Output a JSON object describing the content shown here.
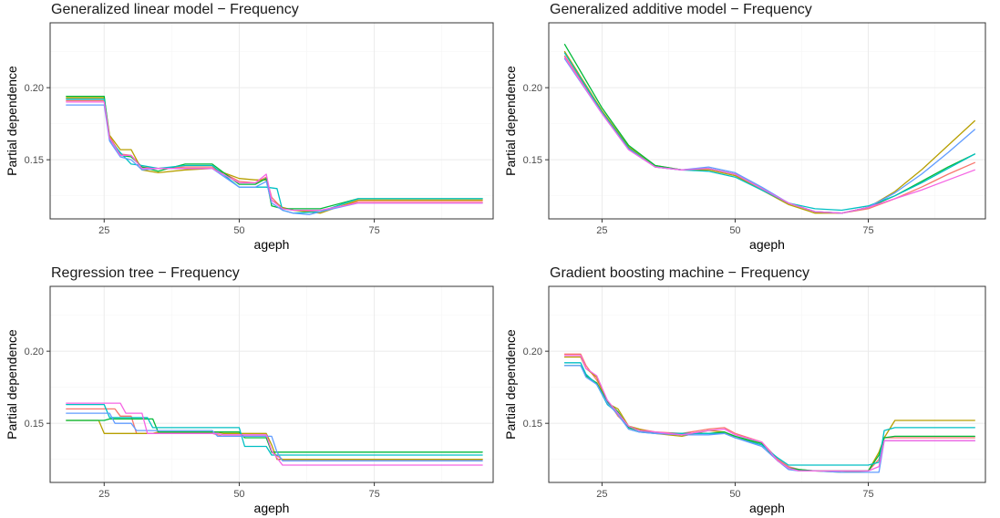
{
  "chart_data": [
    {
      "type": "line",
      "title": "Generalized linear model − Frequency",
      "xlabel": "ageph",
      "ylabel": "Partial dependence",
      "xlim": [
        15,
        97
      ],
      "ylim": [
        0.109,
        0.245
      ],
      "xticks": [
        25,
        50,
        75
      ],
      "yticks": [
        0.15,
        0.2
      ],
      "grid": true,
      "series": [
        {
          "color": "#F8766D",
          "x": [
            18,
            25,
            26,
            28,
            30,
            32,
            35,
            40,
            45,
            50,
            53,
            55,
            56,
            58,
            60,
            65,
            72,
            95
          ],
          "y": [
            0.191,
            0.191,
            0.166,
            0.154,
            0.153,
            0.145,
            0.144,
            0.145,
            0.145,
            0.135,
            0.134,
            0.138,
            0.124,
            0.116,
            0.115,
            0.114,
            0.121,
            0.121
          ]
        },
        {
          "color": "#B79F00",
          "x": [
            18,
            25,
            26,
            28,
            30,
            32,
            35,
            40,
            45,
            50,
            53,
            55,
            56,
            58,
            60,
            65,
            72,
            95
          ],
          "y": [
            0.193,
            0.193,
            0.167,
            0.157,
            0.157,
            0.143,
            0.141,
            0.143,
            0.144,
            0.137,
            0.136,
            0.136,
            0.122,
            0.117,
            0.115,
            0.113,
            0.122,
            0.122
          ]
        },
        {
          "color": "#00BA38",
          "x": [
            18,
            25,
            26,
            28,
            30,
            32,
            35,
            40,
            45,
            50,
            53,
            55,
            56,
            58,
            60,
            65,
            72,
            95
          ],
          "y": [
            0.194,
            0.194,
            0.165,
            0.153,
            0.152,
            0.145,
            0.142,
            0.147,
            0.147,
            0.133,
            0.133,
            0.137,
            0.118,
            0.116,
            0.116,
            0.116,
            0.123,
            0.123
          ]
        },
        {
          "color": "#00BFC4",
          "x": [
            18,
            25,
            26,
            28,
            30,
            32,
            35,
            40,
            45,
            50,
            53,
            55,
            57,
            58,
            60,
            65,
            72,
            95
          ],
          "y": [
            0.192,
            0.192,
            0.164,
            0.155,
            0.147,
            0.146,
            0.144,
            0.146,
            0.146,
            0.131,
            0.131,
            0.131,
            0.13,
            0.115,
            0.113,
            0.114,
            0.123,
            0.123
          ]
        },
        {
          "color": "#619CFF",
          "x": [
            18,
            25,
            26,
            28,
            30,
            32,
            35,
            40,
            45,
            50,
            53,
            55,
            56,
            58,
            60,
            63,
            65,
            72,
            95
          ],
          "y": [
            0.188,
            0.188,
            0.163,
            0.152,
            0.15,
            0.143,
            0.144,
            0.144,
            0.144,
            0.131,
            0.131,
            0.135,
            0.12,
            0.115,
            0.113,
            0.112,
            0.114,
            0.12,
            0.12
          ]
        },
        {
          "color": "#F564E3",
          "x": [
            18,
            25,
            26,
            28,
            30,
            32,
            35,
            40,
            45,
            50,
            53,
            55,
            56,
            58,
            60,
            65,
            72,
            95
          ],
          "y": [
            0.19,
            0.19,
            0.165,
            0.153,
            0.153,
            0.144,
            0.144,
            0.144,
            0.144,
            0.134,
            0.134,
            0.14,
            0.122,
            0.116,
            0.115,
            0.115,
            0.12,
            0.12
          ]
        }
      ]
    },
    {
      "type": "line",
      "title": "Generalized additive model − Frequency",
      "xlabel": "ageph",
      "ylabel": "Partial dependence",
      "xlim": [
        15,
        97
      ],
      "ylim": [
        0.109,
        0.245
      ],
      "xticks": [
        25,
        50,
        75
      ],
      "yticks": [
        0.15,
        0.2
      ],
      "grid": true,
      "series": [
        {
          "color": "#F8766D",
          "x": [
            18,
            25,
            30,
            35,
            40,
            45,
            50,
            55,
            60,
            65,
            70,
            75,
            80,
            85,
            90,
            95
          ],
          "y": [
            0.222,
            0.183,
            0.158,
            0.145,
            0.143,
            0.144,
            0.14,
            0.13,
            0.12,
            0.114,
            0.113,
            0.116,
            0.123,
            0.131,
            0.14,
            0.148
          ]
        },
        {
          "color": "#B79F00",
          "x": [
            18,
            25,
            30,
            35,
            40,
            45,
            50,
            55,
            60,
            65,
            70,
            75,
            80,
            85,
            90,
            95
          ],
          "y": [
            0.225,
            0.184,
            0.159,
            0.146,
            0.143,
            0.143,
            0.139,
            0.129,
            0.119,
            0.113,
            0.113,
            0.117,
            0.128,
            0.143,
            0.16,
            0.177
          ]
        },
        {
          "color": "#00BA38",
          "x": [
            18,
            25,
            30,
            35,
            40,
            45,
            50,
            55,
            60,
            65,
            70,
            75,
            80,
            85,
            90,
            95
          ],
          "y": [
            0.23,
            0.186,
            0.16,
            0.146,
            0.143,
            0.144,
            0.14,
            0.13,
            0.12,
            0.114,
            0.113,
            0.117,
            0.125,
            0.135,
            0.145,
            0.154
          ]
        },
        {
          "color": "#00BFC4",
          "x": [
            18,
            25,
            30,
            35,
            40,
            45,
            50,
            55,
            60,
            65,
            70,
            75,
            80,
            85,
            90,
            95
          ],
          "y": [
            0.224,
            0.183,
            0.158,
            0.145,
            0.143,
            0.142,
            0.138,
            0.129,
            0.12,
            0.116,
            0.115,
            0.118,
            0.125,
            0.134,
            0.144,
            0.154
          ]
        },
        {
          "color": "#619CFF",
          "x": [
            18,
            25,
            30,
            35,
            40,
            45,
            50,
            55,
            60,
            65,
            70,
            75,
            80,
            85,
            90,
            95
          ],
          "y": [
            0.22,
            0.182,
            0.157,
            0.145,
            0.143,
            0.145,
            0.141,
            0.131,
            0.12,
            0.114,
            0.113,
            0.117,
            0.127,
            0.14,
            0.155,
            0.171
          ]
        },
        {
          "color": "#F564E3",
          "x": [
            18,
            25,
            30,
            35,
            40,
            45,
            50,
            55,
            60,
            65,
            70,
            75,
            80,
            85,
            90,
            95
          ],
          "y": [
            0.221,
            0.182,
            0.157,
            0.145,
            0.143,
            0.144,
            0.14,
            0.13,
            0.12,
            0.114,
            0.113,
            0.117,
            0.123,
            0.129,
            0.136,
            0.143
          ]
        }
      ]
    },
    {
      "type": "line",
      "title": "Regression tree − Frequency",
      "xlabel": "ageph",
      "ylabel": "Partial dependence",
      "xlim": [
        15,
        97
      ],
      "ylim": [
        0.109,
        0.245
      ],
      "xticks": [
        25,
        50,
        75
      ],
      "yticks": [
        0.15,
        0.2
      ],
      "grid": true,
      "series": [
        {
          "color": "#F8766D",
          "x": [
            18,
            27,
            28,
            30,
            31,
            33,
            45,
            47,
            55,
            56,
            58,
            95
          ],
          "y": [
            0.16,
            0.16,
            0.155,
            0.155,
            0.143,
            0.143,
            0.143,
            0.141,
            0.141,
            0.13,
            0.125,
            0.125
          ]
        },
        {
          "color": "#B79F00",
          "x": [
            18,
            24,
            25,
            34,
            35,
            46,
            47,
            55,
            56,
            57,
            95
          ],
          "y": [
            0.152,
            0.152,
            0.143,
            0.143,
            0.144,
            0.144,
            0.143,
            0.143,
            0.135,
            0.125,
            0.125
          ]
        },
        {
          "color": "#00BA38",
          "x": [
            18,
            25,
            26,
            34,
            35,
            50,
            51,
            55,
            56,
            95
          ],
          "y": [
            0.152,
            0.152,
            0.153,
            0.153,
            0.144,
            0.144,
            0.14,
            0.14,
            0.13,
            0.13
          ]
        },
        {
          "color": "#00BFC4",
          "x": [
            18,
            25,
            26,
            33,
            34,
            50,
            51,
            55,
            56,
            57,
            95
          ],
          "y": [
            0.163,
            0.163,
            0.154,
            0.154,
            0.147,
            0.147,
            0.134,
            0.134,
            0.128,
            0.128,
            0.128
          ]
        },
        {
          "color": "#619CFF",
          "x": [
            18,
            26,
            27,
            30,
            31,
            45,
            46,
            56,
            57,
            58,
            95
          ],
          "y": [
            0.157,
            0.157,
            0.15,
            0.15,
            0.145,
            0.145,
            0.141,
            0.141,
            0.13,
            0.124,
            0.124
          ]
        },
        {
          "color": "#F564E3",
          "x": [
            18,
            28,
            29,
            32,
            33,
            46,
            47,
            55,
            56,
            58,
            95
          ],
          "y": [
            0.164,
            0.164,
            0.157,
            0.157,
            0.143,
            0.143,
            0.142,
            0.142,
            0.131,
            0.121,
            0.121
          ]
        }
      ]
    },
    {
      "type": "line",
      "title": "Gradient boosting machine − Frequency",
      "xlabel": "ageph",
      "ylabel": "Partial dependence",
      "xlim": [
        15,
        97
      ],
      "ylim": [
        0.109,
        0.245
      ],
      "xticks": [
        25,
        50,
        75
      ],
      "yticks": [
        0.15,
        0.2
      ],
      "grid": true,
      "series": [
        {
          "color": "#F8766D",
          "x": [
            18,
            21,
            22,
            24,
            26,
            28,
            30,
            32,
            35,
            40,
            45,
            48,
            50,
            55,
            58,
            60,
            62,
            65,
            70,
            75,
            77,
            78,
            80,
            95
          ],
          "y": [
            0.198,
            0.198,
            0.19,
            0.18,
            0.166,
            0.155,
            0.148,
            0.146,
            0.144,
            0.143,
            0.146,
            0.147,
            0.143,
            0.137,
            0.125,
            0.12,
            0.118,
            0.117,
            0.117,
            0.117,
            0.125,
            0.14,
            0.14,
            0.14
          ]
        },
        {
          "color": "#B79F00",
          "x": [
            18,
            21,
            22,
            24,
            26,
            28,
            30,
            32,
            35,
            40,
            45,
            48,
            50,
            55,
            58,
            60,
            62,
            65,
            70,
            75,
            77,
            78,
            80,
            95
          ],
          "y": [
            0.196,
            0.196,
            0.188,
            0.182,
            0.164,
            0.16,
            0.148,
            0.146,
            0.143,
            0.141,
            0.145,
            0.144,
            0.14,
            0.136,
            0.124,
            0.119,
            0.117,
            0.117,
            0.116,
            0.117,
            0.13,
            0.14,
            0.152,
            0.152
          ]
        },
        {
          "color": "#00BA38",
          "x": [
            18,
            21,
            22,
            24,
            26,
            28,
            30,
            32,
            35,
            40,
            45,
            48,
            50,
            55,
            58,
            60,
            62,
            65,
            70,
            75,
            77,
            78,
            80,
            95
          ],
          "y": [
            0.19,
            0.19,
            0.183,
            0.178,
            0.165,
            0.158,
            0.147,
            0.145,
            0.143,
            0.143,
            0.143,
            0.144,
            0.141,
            0.136,
            0.124,
            0.119,
            0.118,
            0.117,
            0.117,
            0.117,
            0.128,
            0.14,
            0.141,
            0.141
          ]
        },
        {
          "color": "#00BFC4",
          "x": [
            18,
            21,
            22,
            24,
            26,
            28,
            30,
            32,
            35,
            40,
            45,
            48,
            50,
            55,
            58,
            60,
            62,
            65,
            70,
            75,
            77,
            78,
            80,
            95
          ],
          "y": [
            0.192,
            0.192,
            0.184,
            0.177,
            0.163,
            0.157,
            0.146,
            0.144,
            0.143,
            0.143,
            0.143,
            0.143,
            0.14,
            0.135,
            0.126,
            0.121,
            0.121,
            0.121,
            0.121,
            0.121,
            0.123,
            0.145,
            0.147,
            0.147
          ]
        },
        {
          "color": "#619CFF",
          "x": [
            18,
            21,
            22,
            24,
            26,
            28,
            30,
            32,
            35,
            40,
            45,
            48,
            50,
            55,
            58,
            60,
            62,
            65,
            70,
            75,
            77,
            78,
            80,
            95
          ],
          "y": [
            0.19,
            0.19,
            0.182,
            0.177,
            0.164,
            0.156,
            0.146,
            0.144,
            0.143,
            0.142,
            0.142,
            0.143,
            0.14,
            0.134,
            0.124,
            0.118,
            0.117,
            0.117,
            0.116,
            0.116,
            0.116,
            0.138,
            0.138,
            0.138
          ]
        },
        {
          "color": "#F564E3",
          "x": [
            18,
            21,
            22,
            24,
            26,
            28,
            30,
            32,
            35,
            40,
            45,
            48,
            50,
            55,
            58,
            60,
            62,
            65,
            70,
            75,
            77,
            78,
            80,
            95
          ],
          "y": [
            0.197,
            0.197,
            0.188,
            0.183,
            0.166,
            0.157,
            0.148,
            0.145,
            0.144,
            0.142,
            0.145,
            0.146,
            0.142,
            0.137,
            0.124,
            0.119,
            0.117,
            0.117,
            0.117,
            0.117,
            0.12,
            0.138,
            0.138,
            0.138
          ]
        }
      ]
    }
  ]
}
